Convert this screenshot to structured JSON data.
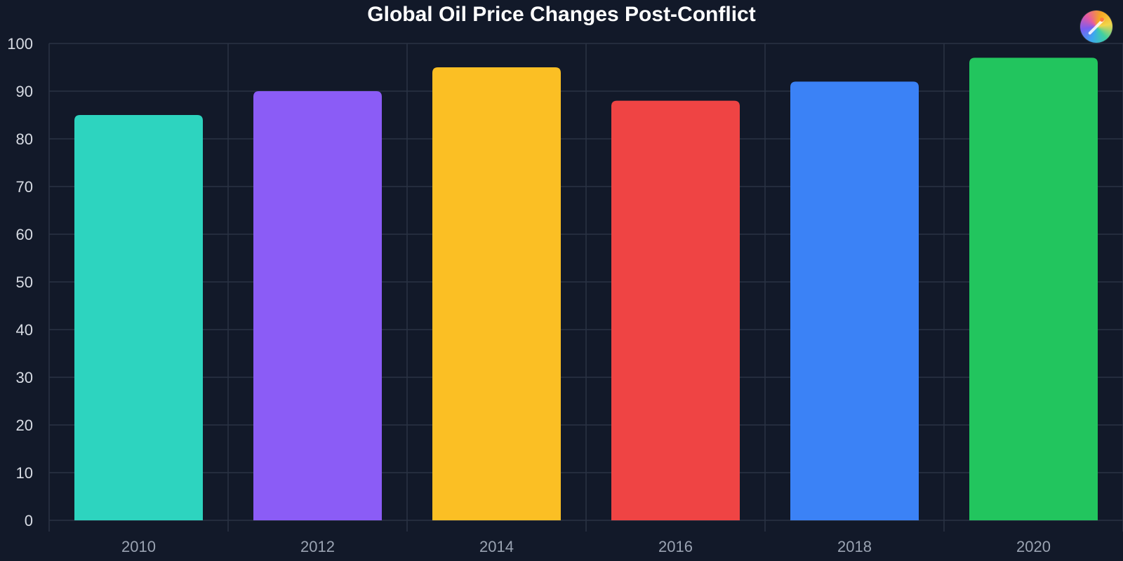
{
  "chart_data": {
    "type": "bar",
    "title": "Global Oil Price Changes Post-Conflict",
    "xlabel": "",
    "ylabel": "",
    "categories": [
      "2010",
      "2012",
      "2014",
      "2016",
      "2018",
      "2020"
    ],
    "values": [
      85,
      90,
      95,
      88,
      92,
      97
    ],
    "colors": [
      "#2dd4bf",
      "#8b5cf6",
      "#fbbf24",
      "#ef4444",
      "#3b82f6",
      "#22c55e"
    ],
    "ylim": [
      0,
      100
    ],
    "yticks": [
      0,
      10,
      20,
      30,
      40,
      50,
      60,
      70,
      80,
      90,
      100
    ],
    "grid": true,
    "legend": "none"
  },
  "theme": {
    "background": "#121929",
    "grid_color": "#2a3344",
    "title_color": "#ffffff"
  },
  "header": {
    "logo_icon": "paint-palette-icon"
  }
}
